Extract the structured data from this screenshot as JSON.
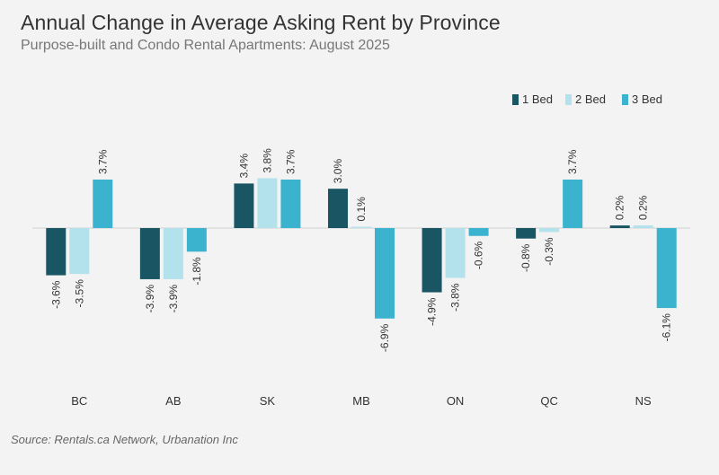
{
  "chart_data": {
    "type": "bar",
    "title": "Annual Change in Average Asking Rent by Province",
    "subtitle": "Purpose-built and Condo Rental Apartments: August 2025",
    "categories": [
      "BC",
      "AB",
      "SK",
      "MB",
      "ON",
      "QC",
      "NS"
    ],
    "series": [
      {
        "name": "1 Bed",
        "color": "#1a5563",
        "values": [
          -3.6,
          -3.9,
          3.4,
          3.0,
          -4.9,
          -0.8,
          0.2
        ],
        "labels": [
          "-3.6%",
          "-3.9%",
          "3.4%",
          "3.0%",
          "-4.9%",
          "-0.8%",
          "0.2%"
        ]
      },
      {
        "name": "2 Bed",
        "color": "#b3e1ec",
        "values": [
          -3.5,
          -3.9,
          3.8,
          0.1,
          -3.8,
          -0.3,
          0.2
        ],
        "labels": [
          "-3.5%",
          "-3.9%",
          "3.8%",
          "0.1%",
          "-3.8%",
          "-0.3%",
          "0.2%"
        ]
      },
      {
        "name": "3 Bed",
        "color": "#3bb3cf",
        "values": [
          3.7,
          -1.8,
          3.7,
          -6.9,
          -0.6,
          3.7,
          -6.1
        ],
        "labels": [
          "3.7%",
          "-1.8%",
          "3.7%",
          "-6.9%",
          "-0.6%",
          "3.7%",
          "-6.1%"
        ]
      }
    ],
    "legend_position": "top-right",
    "grid": false,
    "source": "Source: Rentals.ca Network, Urbanation Inc"
  }
}
